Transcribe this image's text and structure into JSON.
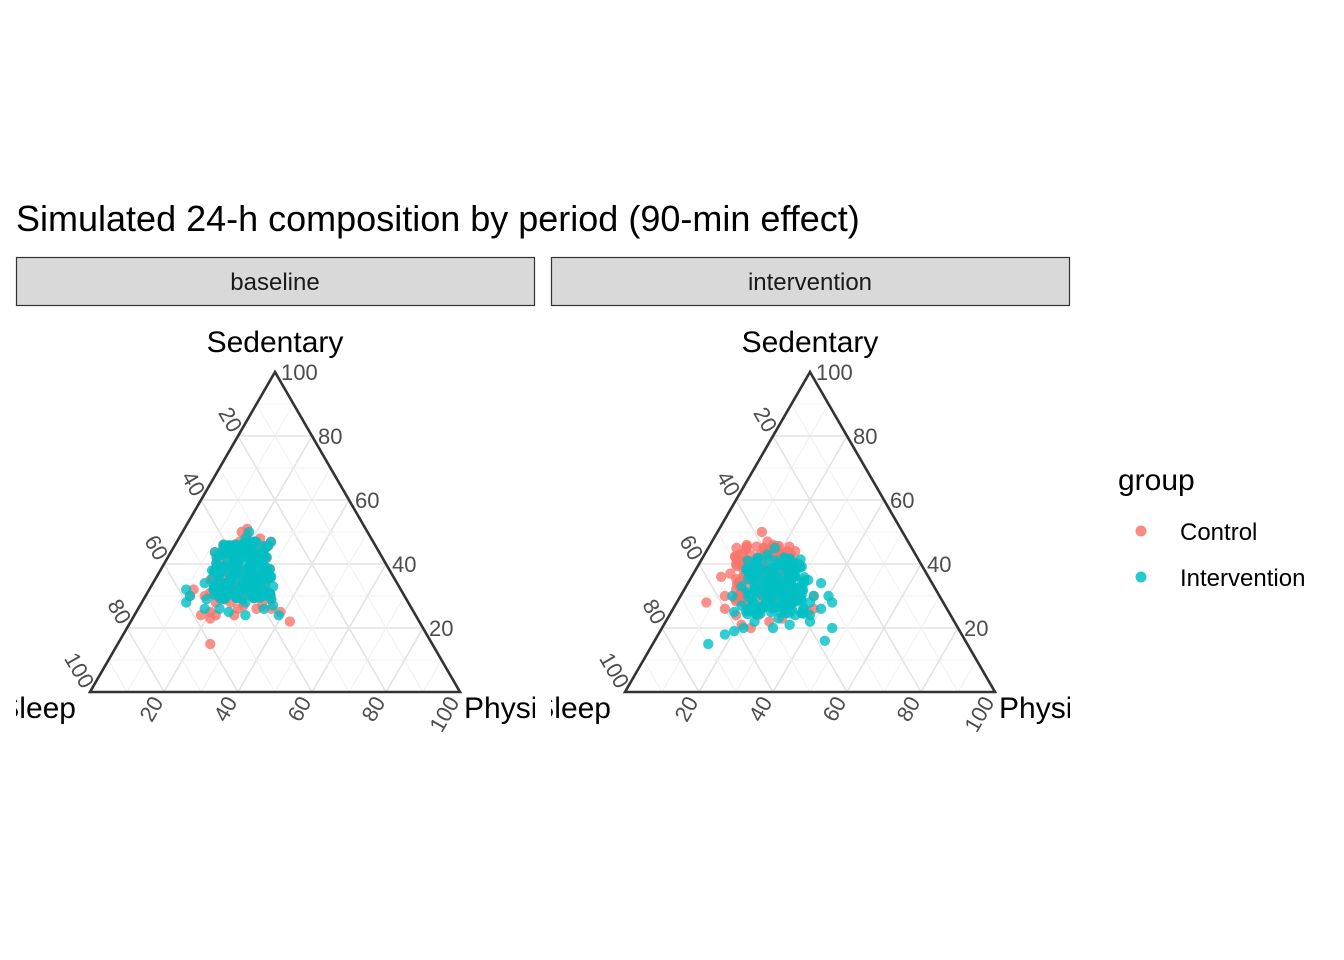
{
  "chart_data": {
    "type": "scatter",
    "subtype": "ternary",
    "title": "Simulated 24-h composition by period (90-min effect)",
    "facets": [
      "baseline",
      "intervention"
    ],
    "axes": {
      "top": "Sedentary",
      "left": "Sleep",
      "right": "Physical activity",
      "ticks": [
        20,
        40,
        60,
        80,
        100
      ],
      "range": [
        0,
        100
      ]
    },
    "grid": true,
    "legend": {
      "title": "group",
      "position": "right",
      "entries": [
        {
          "name": "Control",
          "color": "#F8766D"
        },
        {
          "name": "Intervention",
          "color": "#00BFC4"
        }
      ]
    },
    "series": [
      {
        "name": "Control",
        "facet": "baseline",
        "center": {
          "Sedentary": 38,
          "Sleep": 40,
          "Physical activity": 22
        },
        "points": [
          [
            51,
            32,
            17
          ],
          [
            49,
            33,
            18
          ],
          [
            50,
            34,
            16
          ],
          [
            30,
            54,
            16
          ],
          [
            28,
            52,
            20
          ],
          [
            15,
            60,
            25
          ],
          [
            27,
            40,
            33
          ],
          [
            26,
            42,
            32
          ],
          [
            25,
            36,
            39
          ],
          [
            22,
            35,
            43
          ],
          [
            25,
            55,
            20
          ],
          [
            24,
            58,
            18
          ],
          [
            30,
            58,
            12
          ],
          [
            31,
            52,
            17
          ],
          [
            35,
            50,
            15
          ],
          [
            32,
            56,
            12
          ],
          [
            24,
            49,
            27
          ],
          [
            26,
            47,
            27
          ],
          [
            40,
            44,
            16
          ],
          [
            38,
            40,
            22
          ],
          [
            42,
            36,
            22
          ],
          [
            36,
            38,
            26
          ],
          [
            34,
            44,
            22
          ],
          [
            44,
            38,
            18
          ],
          [
            46,
            34,
            20
          ],
          [
            30,
            44,
            26
          ],
          [
            28,
            48,
            24
          ],
          [
            33,
            41,
            26
          ],
          [
            37,
            44,
            19
          ],
          [
            41,
            40,
            19
          ],
          [
            39,
            37,
            24
          ],
          [
            43,
            42,
            15
          ],
          [
            36,
            46,
            18
          ],
          [
            32,
            38,
            30
          ],
          [
            29,
            37,
            34
          ],
          [
            27,
            45,
            28
          ],
          [
            45,
            32,
            23
          ],
          [
            47,
            36,
            17
          ],
          [
            48,
            30,
            22
          ],
          [
            26,
            38,
            36
          ],
          [
            24,
            54,
            22
          ],
          [
            23,
            56,
            21
          ],
          [
            35,
            35,
            30
          ],
          [
            31,
            46,
            23
          ],
          [
            29,
            50,
            21
          ]
        ]
      },
      {
        "name": "Intervention",
        "facet": "baseline",
        "center": {
          "Sedentary": 38,
          "Sleep": 40,
          "Physical activity": 22
        },
        "points": [
          [
            50,
            32,
            18
          ],
          [
            48,
            34,
            18
          ],
          [
            30,
            58,
            12
          ],
          [
            32,
            58,
            10
          ],
          [
            28,
            60,
            12
          ],
          [
            26,
            56,
            18
          ],
          [
            25,
            50,
            25
          ],
          [
            24,
            46,
            30
          ],
          [
            26,
            40,
            34
          ],
          [
            24,
            37,
            39
          ],
          [
            30,
            38,
            32
          ],
          [
            35,
            36,
            29
          ],
          [
            34,
            37,
            29
          ],
          [
            36,
            33,
            31
          ],
          [
            40,
            34,
            26
          ],
          [
            42,
            36,
            22
          ],
          [
            44,
            38,
            18
          ],
          [
            38,
            48,
            14
          ],
          [
            36,
            44,
            20
          ],
          [
            40,
            40,
            20
          ],
          [
            38,
            38,
            24
          ],
          [
            32,
            42,
            26
          ],
          [
            34,
            46,
            20
          ],
          [
            30,
            48,
            22
          ],
          [
            28,
            44,
            28
          ],
          [
            43,
            33,
            24
          ],
          [
            46,
            36,
            18
          ],
          [
            45,
            30,
            25
          ],
          [
            37,
            42,
            21
          ],
          [
            33,
            50,
            17
          ],
          [
            29,
            54,
            17
          ],
          [
            31,
            40,
            29
          ],
          [
            27,
            37,
            36
          ],
          [
            35,
            40,
            25
          ],
          [
            41,
            38,
            21
          ],
          [
            39,
            44,
            17
          ],
          [
            34,
            52,
            14
          ],
          [
            26,
            52,
            22
          ],
          [
            47,
            32,
            21
          ],
          [
            33,
            34,
            33
          ]
        ]
      },
      {
        "name": "Control",
        "facet": "intervention",
        "center": {
          "Sedentary": 37,
          "Sleep": 44,
          "Physical activity": 19
        },
        "points": [
          [
            50,
            38,
            12
          ],
          [
            47,
            38,
            15
          ],
          [
            46,
            37,
            17
          ],
          [
            44,
            40,
            16
          ],
          [
            40,
            50,
            10
          ],
          [
            41,
            46,
            13
          ],
          [
            36,
            56,
            8
          ],
          [
            37,
            53,
            10
          ],
          [
            34,
            52,
            14
          ],
          [
            30,
            58,
            12
          ],
          [
            28,
            64,
            8
          ],
          [
            26,
            60,
            14
          ],
          [
            24,
            58,
            18
          ],
          [
            21,
            58,
            21
          ],
          [
            20,
            56,
            24
          ],
          [
            22,
            50,
            28
          ],
          [
            25,
            38,
            37
          ],
          [
            26,
            36,
            38
          ],
          [
            30,
            34,
            36
          ],
          [
            44,
            32,
            24
          ],
          [
            32,
            54,
            14
          ],
          [
            38,
            48,
            14
          ],
          [
            42,
            42,
            16
          ],
          [
            35,
            45,
            20
          ],
          [
            33,
            40,
            27
          ],
          [
            29,
            48,
            23
          ],
          [
            27,
            44,
            29
          ],
          [
            39,
            38,
            23
          ],
          [
            36,
            42,
            22
          ],
          [
            31,
            46,
            23
          ],
          [
            45,
            40,
            15
          ],
          [
            43,
            36,
            21
          ],
          [
            40,
            44,
            16
          ],
          [
            34,
            48,
            18
          ],
          [
            28,
            54,
            18
          ],
          [
            24,
            52,
            24
          ],
          [
            23,
            46,
            31
          ],
          [
            26,
            50,
            24
          ],
          [
            37,
            36,
            27
          ],
          [
            41,
            34,
            25
          ]
        ]
      },
      {
        "name": "Intervention",
        "facet": "intervention",
        "center": {
          "Sedentary": 33,
          "Sleep": 43,
          "Physical activity": 24
        },
        "points": [
          [
            45,
            37,
            18
          ],
          [
            42,
            36,
            22
          ],
          [
            40,
            34,
            26
          ],
          [
            38,
            44,
            18
          ],
          [
            36,
            40,
            24
          ],
          [
            30,
            56,
            14
          ],
          [
            25,
            58,
            17
          ],
          [
            19,
            61,
            20
          ],
          [
            18,
            64,
            18
          ],
          [
            15,
            70,
            15
          ],
          [
            20,
            50,
            30
          ],
          [
            21,
            45,
            34
          ],
          [
            22,
            39,
            39
          ],
          [
            16,
            38,
            46
          ],
          [
            28,
            30,
            42
          ],
          [
            30,
            34,
            36
          ],
          [
            34,
            30,
            36
          ],
          [
            20,
            34,
            46
          ],
          [
            23,
            47,
            30
          ],
          [
            26,
            52,
            22
          ],
          [
            32,
            46,
            22
          ],
          [
            35,
            42,
            23
          ],
          [
            33,
            38,
            29
          ],
          [
            29,
            40,
            31
          ],
          [
            27,
            44,
            29
          ],
          [
            31,
            50,
            19
          ],
          [
            37,
            46,
            17
          ],
          [
            39,
            40,
            21
          ],
          [
            34,
            48,
            18
          ],
          [
            28,
            36,
            36
          ],
          [
            24,
            42,
            34
          ],
          [
            26,
            34,
            40
          ],
          [
            43,
            40,
            17
          ],
          [
            41,
            44,
            15
          ],
          [
            36,
            36,
            28
          ],
          [
            31,
            42,
            27
          ],
          [
            25,
            48,
            27
          ],
          [
            22,
            54,
            24
          ],
          [
            33,
            52,
            15
          ],
          [
            38,
            36,
            26
          ],
          [
            20,
            58,
            22
          ],
          [
            24,
            38,
            38
          ],
          [
            30,
            30,
            40
          ],
          [
            35,
            33,
            32
          ],
          [
            27,
            55,
            18
          ]
        ]
      }
    ]
  }
}
